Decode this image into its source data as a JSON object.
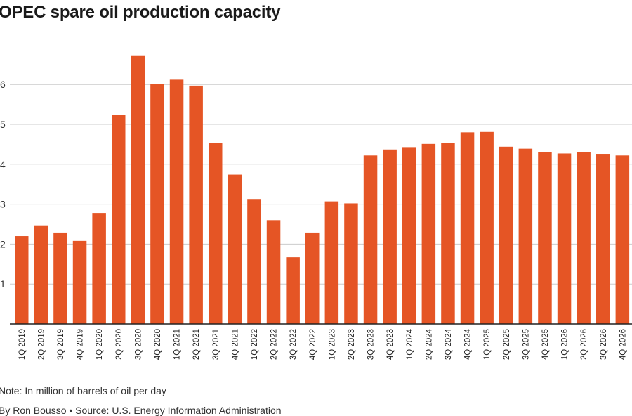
{
  "title": "OPEC spare oil production capacity",
  "note": "Note: In million of barrels of oil per day",
  "credit": "By Ron Bousso • Source: U.S. Energy Information Administration",
  "colors": {
    "bar": "#e55525",
    "grid": "#cccccc",
    "axis": "#222222"
  },
  "chart_data": {
    "type": "bar",
    "title": "OPEC spare oil production capacity",
    "xlabel": "",
    "ylabel": "",
    "ylim": [
      0,
      7
    ],
    "yticks": [
      1,
      2,
      3,
      4,
      5,
      6
    ],
    "grid": true,
    "categories": [
      "1Q 2019",
      "2Q 2019",
      "3Q 2019",
      "4Q 2019",
      "1Q 2020",
      "2Q 2020",
      "3Q 2020",
      "4Q 2020",
      "1Q 2021",
      "2Q 2021",
      "3Q 2021",
      "4Q 2021",
      "1Q 2022",
      "2Q 2022",
      "3Q 2022",
      "4Q 2022",
      "1Q 2023",
      "2Q 2023",
      "3Q 2023",
      "4Q 2023",
      "1Q 2024",
      "2Q 2024",
      "3Q 2024",
      "4Q 2024",
      "1Q 2025",
      "2Q 2025",
      "3Q 2025",
      "4Q 2025",
      "1Q 2026",
      "2Q 2026",
      "3Q 2026",
      "4Q 2026"
    ],
    "values": [
      2.2,
      2.47,
      2.29,
      2.08,
      2.78,
      5.23,
      6.73,
      6.02,
      6.12,
      5.97,
      4.54,
      3.74,
      3.13,
      2.6,
      1.67,
      2.29,
      3.07,
      3.02,
      4.22,
      4.37,
      4.43,
      4.51,
      4.53,
      4.8,
      4.81,
      4.44,
      4.39,
      4.31,
      4.27,
      4.31,
      4.26,
      4.22
    ]
  }
}
